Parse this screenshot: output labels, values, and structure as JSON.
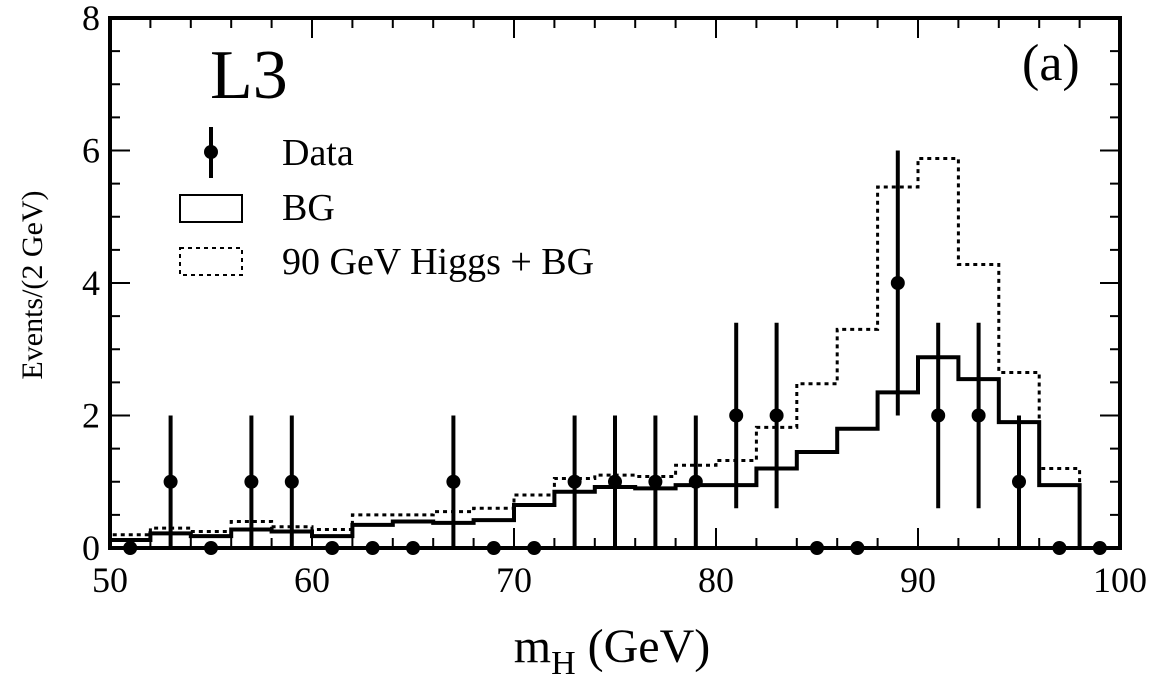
{
  "chart_data": {
    "type": "histogram",
    "experiment_label": "L3",
    "panel_label": "(a)",
    "xlabel_main": "m",
    "xlabel_sub": "H",
    "xlabel_unit": " (GeV)",
    "ylabel": "Events/(2 GeV)",
    "xlim": [
      50,
      100
    ],
    "ylim": [
      0,
      8
    ],
    "xticks": [
      50,
      60,
      70,
      80,
      90,
      100
    ],
    "yticks": [
      0,
      2,
      4,
      6,
      8
    ],
    "bin_width": 2,
    "bin_edges": [
      50,
      52,
      54,
      56,
      58,
      60,
      62,
      64,
      66,
      68,
      70,
      72,
      74,
      76,
      78,
      80,
      82,
      84,
      86,
      88,
      90,
      92,
      94,
      96,
      98,
      100
    ],
    "legend": {
      "placement": "upper-left",
      "entries": [
        {
          "key": "data",
          "label": "Data"
        },
        {
          "key": "bg",
          "label": "BG"
        },
        {
          "key": "signal",
          "label": "90 GeV Higgs + BG"
        }
      ]
    },
    "series": [
      {
        "name": "BG",
        "style": "solid-step",
        "values": [
          0.12,
          0.22,
          0.18,
          0.28,
          0.25,
          0.18,
          0.35,
          0.4,
          0.38,
          0.42,
          0.65,
          0.85,
          0.92,
          0.9,
          0.95,
          0.95,
          1.2,
          1.45,
          1.8,
          2.35,
          2.88,
          2.55,
          1.9,
          0.95,
          0.0
        ]
      },
      {
        "name": "90 GeV Higgs + BG",
        "style": "dotted-step",
        "values": [
          0.2,
          0.3,
          0.25,
          0.4,
          0.32,
          0.28,
          0.5,
          0.5,
          0.55,
          0.6,
          0.8,
          1.05,
          1.1,
          1.08,
          1.25,
          1.32,
          1.82,
          2.48,
          3.3,
          5.45,
          5.88,
          4.28,
          2.65,
          1.2,
          0.0
        ]
      },
      {
        "name": "Data",
        "style": "points-with-errors",
        "x": [
          51,
          53,
          55,
          57,
          59,
          61,
          63,
          65,
          67,
          69,
          71,
          73,
          75,
          77,
          79,
          81,
          83,
          85,
          87,
          89,
          91,
          93,
          95,
          97,
          99
        ],
        "y": [
          0,
          1,
          0,
          1,
          1,
          0,
          0,
          0,
          1,
          0,
          0,
          1,
          1,
          1,
          1,
          2,
          2,
          0,
          0,
          4,
          2,
          2,
          1,
          0,
          0
        ],
        "yerr_low": [
          0,
          1,
          0,
          1,
          1,
          0,
          0,
          0,
          1,
          0,
          0,
          1,
          1,
          1,
          1,
          1.4,
          1.4,
          0,
          0,
          2,
          1.4,
          1.4,
          1,
          0,
          0
        ],
        "yerr_high": [
          0,
          1,
          0,
          1,
          1,
          0,
          0,
          0,
          1,
          0,
          0,
          1,
          1,
          1,
          1,
          1.4,
          1.4,
          0,
          0,
          2,
          1.4,
          1.4,
          1,
          0,
          0
        ]
      }
    ]
  }
}
